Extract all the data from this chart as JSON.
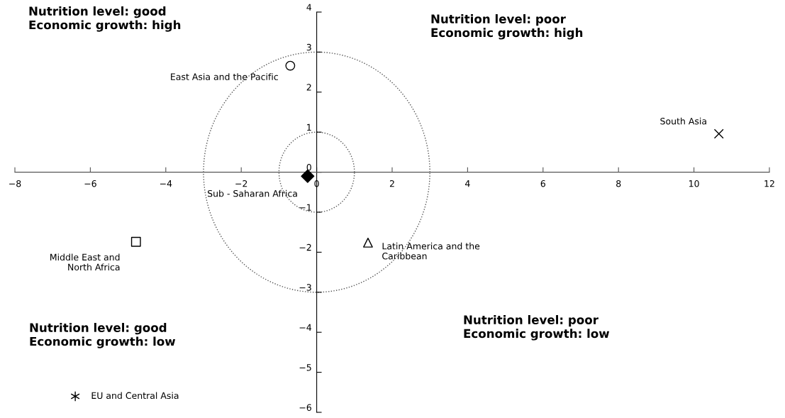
{
  "chart_data": {
    "type": "scatter",
    "xlim": [
      -8,
      12
    ],
    "xticks": [
      -8,
      -6,
      -4,
      -2,
      0,
      2,
      4,
      6,
      8,
      10,
      12
    ],
    "ylim": [
      -6,
      4
    ],
    "yticks": [
      -6,
      -5,
      -4,
      -3,
      -2,
      -1,
      0,
      1,
      2,
      3,
      4
    ],
    "grid": false,
    "legend": false,
    "series": [
      {
        "name": "East Asia and the Pacific",
        "color": "#000000",
        "marker": "circle",
        "x": [
          -0.7
        ],
        "values": [
          2.66
        ]
      },
      {
        "name": "Sub - Saharan Africa",
        "color": "#000000",
        "marker": "diamond",
        "x": [
          -0.24
        ],
        "values": [
          -0.1
        ]
      },
      {
        "name": "South Asia",
        "color": "#000000",
        "marker": "cross",
        "x": [
          10.66
        ],
        "values": [
          0.96
        ]
      },
      {
        "name": "Middle East and\nNorth Africa",
        "color": "#000000",
        "marker": "square",
        "x": [
          -4.79
        ],
        "values": [
          -1.74
        ]
      },
      {
        "name": "Latin America and the\nCaribbean",
        "color": "#000000",
        "marker": "triangle",
        "x": [
          1.36
        ],
        "values": [
          -1.76
        ]
      },
      {
        "name": "EU and Central Asia",
        "color": "#000000",
        "x": [
          -6.4
        ],
        "values": [
          -5.6
        ]
      }
    ],
    "annotations": [
      "Nutrition level: good\nEconomic growth: high",
      "Nutrition level: poor\nEconomic growth: high",
      "Nutrition level: good\nEconomic growth: low",
      "Nutrition level: poor\nEconomic growth: low"
    ]
  }
}
